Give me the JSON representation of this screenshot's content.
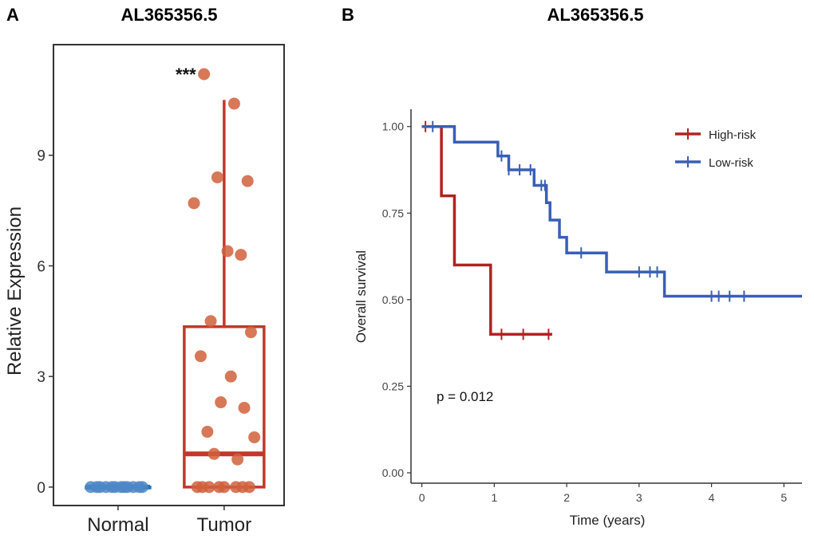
{
  "chart_data": [
    {
      "panel_label": "A",
      "type": "box",
      "title": "AL365356.5",
      "xlabel": "",
      "ylabel": "Relative Expression",
      "categories": [
        "Normal",
        "Tumor"
      ],
      "ylim": [
        -0.5,
        12
      ],
      "yticks": [
        0,
        3,
        6,
        9
      ],
      "grid": false,
      "significance": "***",
      "colors": {
        "Normal_box": "#1f77b4",
        "Normal_points": "#4f86c6",
        "Tumor_box": "#c0392b",
        "Tumor_points": "#d0603c"
      },
      "boxes": [
        {
          "category": "Normal",
          "q1": 0,
          "median": 0,
          "q3": 0,
          "whisker_low": 0,
          "whisker_high": 0
        },
        {
          "category": "Tumor",
          "q1": 0,
          "median": 0.9,
          "q3": 4.35,
          "whisker_low": 0,
          "whisker_high": 10.5
        }
      ],
      "points": {
        "Normal": [
          0,
          0,
          0,
          0,
          0,
          0,
          0,
          0,
          0,
          0,
          0,
          0
        ],
        "Tumor": [
          11.2,
          10.4,
          8.4,
          8.3,
          7.7,
          6.4,
          6.3,
          4.5,
          4.2,
          3.55,
          3.0,
          2.3,
          2.15,
          1.5,
          1.35,
          0.9,
          0.75,
          0,
          0,
          0,
          0,
          0,
          0,
          0,
          0
        ]
      }
    },
    {
      "panel_label": "B",
      "type": "step",
      "title": "AL365356.5",
      "xlabel": "Time (years)",
      "ylabel": "Overall survival",
      "xlim": [
        -0.15,
        5.25
      ],
      "ylim": [
        -0.03,
        1.05
      ],
      "xticks": [
        0,
        1,
        2,
        3,
        4,
        5
      ],
      "yticks": [
        0.0,
        0.25,
        0.5,
        0.75,
        1.0
      ],
      "yticklabels": [
        "0.00",
        "0.25",
        "0.50",
        "0.75",
        "1.00"
      ],
      "grid": false,
      "legend_position": "top-right",
      "annotation": "p = 0.012",
      "series": [
        {
          "name": "High-risk",
          "color": "#b22222",
          "steps": [
            [
              0,
              1.0
            ],
            [
              0.27,
              0.8
            ],
            [
              0.45,
              0.6
            ],
            [
              0.95,
              0.4
            ],
            [
              1.8,
              0.4
            ]
          ],
          "censor_times": [
            0.05,
            1.1,
            1.4,
            1.75
          ]
        },
        {
          "name": "Low-risk",
          "color": "#3a5fb4",
          "steps": [
            [
              0,
              1.0
            ],
            [
              0.45,
              0.955
            ],
            [
              1.05,
              0.915
            ],
            [
              1.2,
              0.875
            ],
            [
              1.55,
              0.83
            ],
            [
              1.72,
              0.78
            ],
            [
              1.77,
              0.73
            ],
            [
              1.9,
              0.68
            ],
            [
              2.0,
              0.635
            ],
            [
              2.55,
              0.58
            ],
            [
              3.35,
              0.51
            ],
            [
              5.25,
              0.51
            ]
          ],
          "censor_times": [
            0.15,
            1.1,
            1.2,
            1.35,
            1.5,
            1.65,
            1.7,
            2.2,
            3.0,
            3.15,
            3.25,
            4.0,
            4.1,
            4.25,
            4.45
          ]
        }
      ]
    }
  ]
}
